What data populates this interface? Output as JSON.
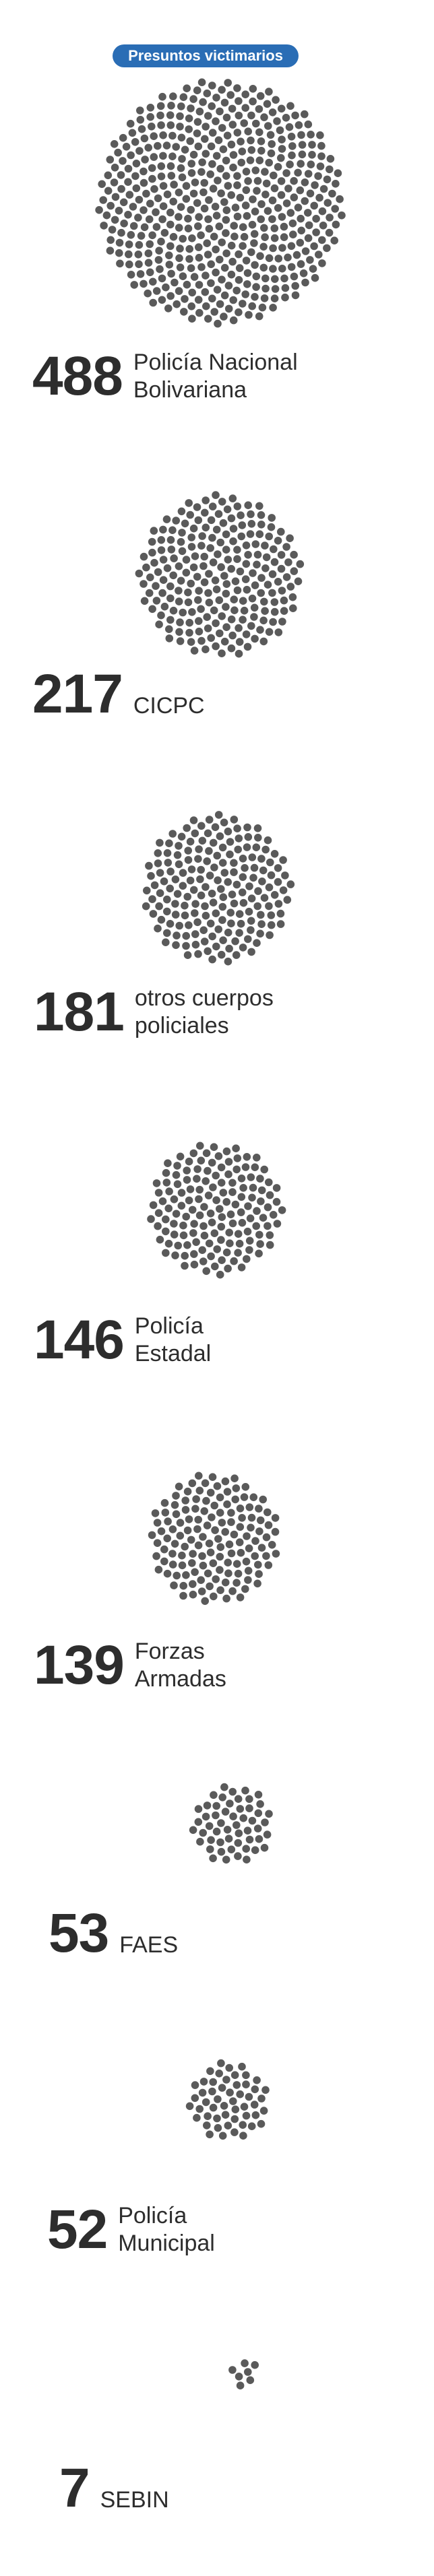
{
  "legend_badge": "Presuntos victimarios",
  "chart_data": {
    "type": "packed-dot",
    "unit": "one dot per case",
    "dot_color": "#5a5a5a",
    "badge_color": "#2a6db5",
    "categories": [
      "Policía Nacional\nBolivariana",
      "CICPC",
      "otros cuerpos\npoliciales",
      "Policía\nEstadal",
      "Forzas\nArmadas",
      "FAES",
      "Policía\nMunicipal",
      "SEBIN"
    ],
    "values": [
      488,
      217,
      181,
      146,
      139,
      53,
      52,
      7
    ]
  },
  "items": [
    {
      "value": "488",
      "label": "Policía Nacional\nBolivariana"
    },
    {
      "value": "217",
      "label": "CICPC"
    },
    {
      "value": "181",
      "label": "otros cuerpos\npoliciales"
    },
    {
      "value": "146",
      "label": "Policía\nEstadal"
    },
    {
      "value": "139",
      "label": "Forzas\nArmadas"
    },
    {
      "value": "53",
      "label": "FAES"
    },
    {
      "value": "52",
      "label": "Policía\nMunicipal"
    },
    {
      "value": "7",
      "label": "SEBIN"
    }
  ]
}
